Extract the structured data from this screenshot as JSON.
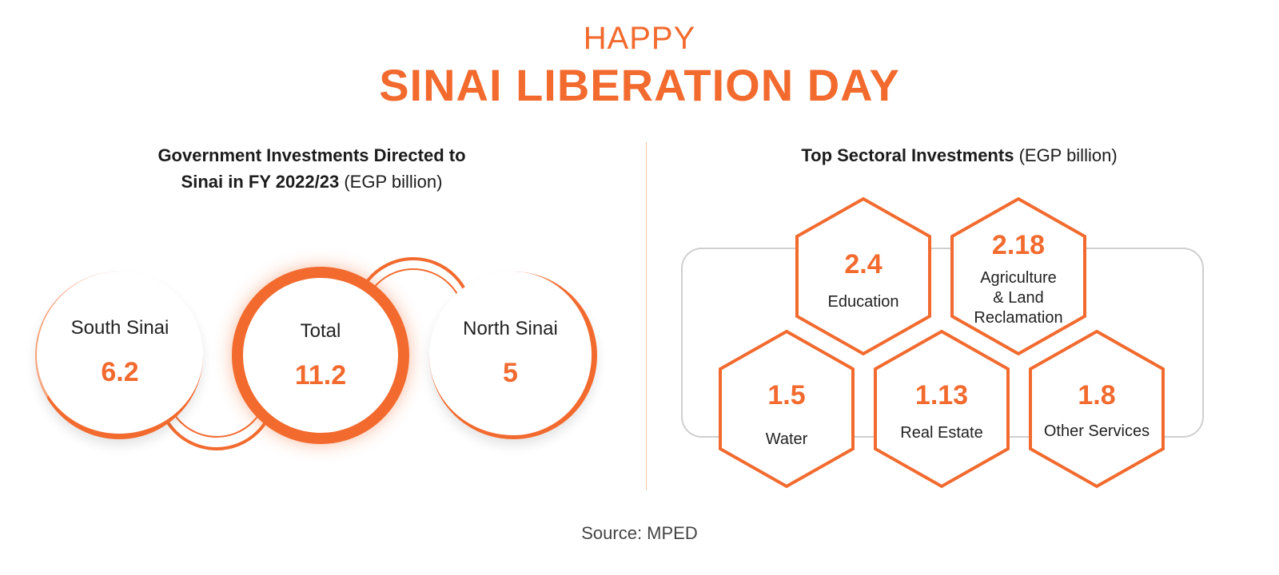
{
  "title": {
    "line1": "HAPPY",
    "line2": "SINAI LIBERATION DAY"
  },
  "left_panel": {
    "heading_bold_line1": "Government Investments Directed to",
    "heading_bold_line2": "Sinai in FY 2022/23",
    "heading_unit": "(EGP billion)",
    "regions": [
      {
        "label": "South Sinai",
        "value": "6.2"
      },
      {
        "label": "Total",
        "value": "11.2"
      },
      {
        "label": "North Sinai",
        "value": "5"
      }
    ]
  },
  "right_panel": {
    "heading_bold": "Top Sectoral Investments",
    "heading_unit": "(EGP billion)",
    "sectors": [
      {
        "label": "Education",
        "value": "2.4"
      },
      {
        "label": "Agriculture",
        "label2": "&  Land",
        "label3": "Reclamation",
        "value": "2.18"
      },
      {
        "label": "Water",
        "value": "1.5"
      },
      {
        "label": "Real Estate",
        "value": "1.13"
      },
      {
        "label": "Other Services",
        "value": "1.8"
      }
    ]
  },
  "source": "Source: MPED",
  "colors": {
    "accent": "#f26a2e",
    "frame": "#cfcfcf",
    "divider": "#f4c7b0"
  }
}
